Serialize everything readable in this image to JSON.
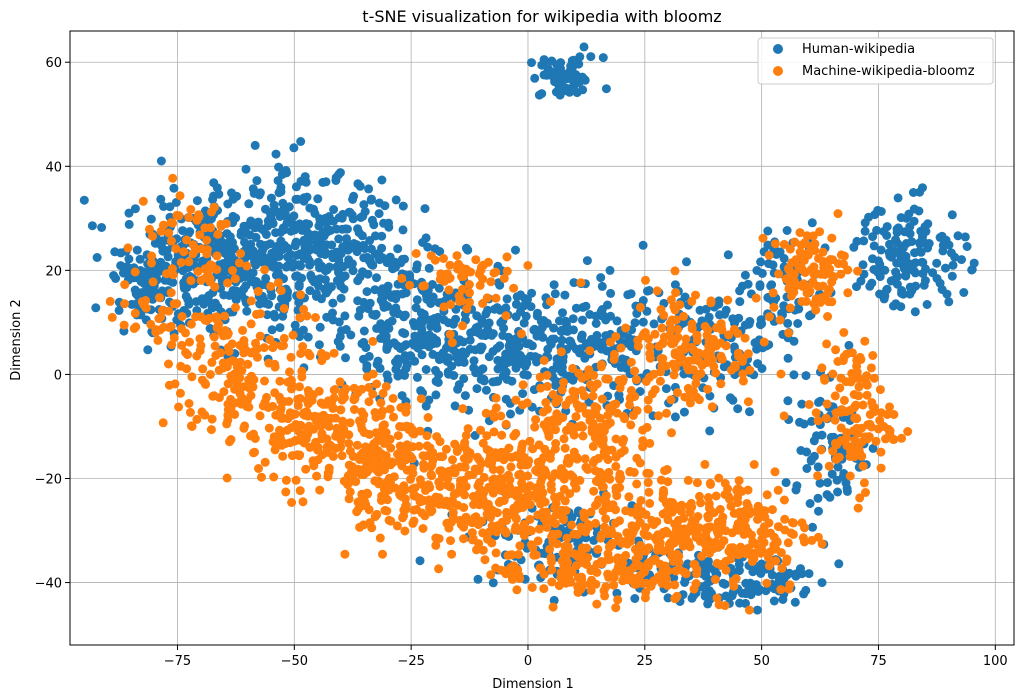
{
  "chart_data": {
    "type": "scatter",
    "title": "t-SNE visualization for wikipedia with bloomz",
    "xlabel": "Dimension 1",
    "ylabel": "Dimension 2",
    "xlim": [
      -98,
      104
    ],
    "ylim": [
      -52,
      66
    ],
    "x_ticks": [
      -75,
      -50,
      -25,
      0,
      25,
      50,
      75,
      100
    ],
    "x_tick_labels": [
      "−75",
      "−50",
      "−25",
      "0",
      "25",
      "50",
      "75",
      "100"
    ],
    "y_ticks": [
      -40,
      -20,
      0,
      20,
      40,
      60
    ],
    "y_tick_labels": [
      "−40",
      "−20",
      "0",
      "20",
      "40",
      "60"
    ],
    "grid": true,
    "legend_position": "top-right",
    "series": [
      {
        "name": "Human-wikipedia",
        "color": "#1f77b4",
        "clusters": [
          {
            "cx": 8,
            "cy": 57,
            "sx": 4,
            "sy": 2,
            "n": 60
          },
          {
            "cx": -65,
            "cy": 22,
            "sx": 11,
            "sy": 7,
            "n": 380
          },
          {
            "cx": -45,
            "cy": 24,
            "sx": 9,
            "sy": 7,
            "n": 260
          },
          {
            "cx": -80,
            "cy": 18,
            "sx": 4,
            "sy": 4,
            "n": 80
          },
          {
            "cx": -25,
            "cy": 10,
            "sx": 9,
            "sy": 8,
            "n": 220
          },
          {
            "cx": -5,
            "cy": 5,
            "sx": 8,
            "sy": 6,
            "n": 200
          },
          {
            "cx": 15,
            "cy": 5,
            "sx": 8,
            "sy": 6,
            "n": 150
          },
          {
            "cx": 40,
            "cy": 5,
            "sx": 8,
            "sy": 7,
            "n": 120
          },
          {
            "cx": 82,
            "cy": 23,
            "sx": 6,
            "sy": 5,
            "n": 150
          },
          {
            "cx": 55,
            "cy": 17,
            "sx": 4,
            "sy": 5,
            "n": 70
          },
          {
            "cx": 65,
            "cy": -15,
            "sx": 5,
            "sy": 6,
            "n": 80
          },
          {
            "cx": 5,
            "cy": -32,
            "sx": 9,
            "sy": 4,
            "n": 100
          },
          {
            "cx": 35,
            "cy": -38,
            "sx": 9,
            "sy": 3,
            "n": 100
          },
          {
            "cx": 50,
            "cy": -40,
            "sx": 5,
            "sy": 3,
            "n": 60
          }
        ]
      },
      {
        "name": "Machine-wikipedia-bloomz",
        "color": "#ff7f0e",
        "clusters": [
          {
            "cx": -62,
            "cy": 2,
            "sx": 7,
            "sy": 8,
            "n": 180
          },
          {
            "cx": -45,
            "cy": -10,
            "sx": 8,
            "sy": 6,
            "n": 200
          },
          {
            "cx": -30,
            "cy": -18,
            "sx": 7,
            "sy": 6,
            "n": 180
          },
          {
            "cx": -12,
            "cy": -22,
            "sx": 8,
            "sy": 6,
            "n": 220
          },
          {
            "cx": 5,
            "cy": -20,
            "sx": 8,
            "sy": 8,
            "n": 200
          },
          {
            "cx": 15,
            "cy": -10,
            "sx": 7,
            "sy": 8,
            "n": 150
          },
          {
            "cx": 25,
            "cy": -33,
            "sx": 7,
            "sy": 6,
            "n": 180
          },
          {
            "cx": 45,
            "cy": -30,
            "sx": 8,
            "sy": 6,
            "n": 180
          },
          {
            "cx": 35,
            "cy": 5,
            "sx": 7,
            "sy": 6,
            "n": 150
          },
          {
            "cx": 60,
            "cy": 20,
            "sx": 4,
            "sy": 4,
            "n": 100
          },
          {
            "cx": 70,
            "cy": -8,
            "sx": 4,
            "sy": 7,
            "n": 120
          },
          {
            "cx": -15,
            "cy": 18,
            "sx": 6,
            "sy": 4,
            "n": 60
          },
          {
            "cx": -72,
            "cy": 25,
            "sx": 6,
            "sy": 6,
            "n": 60
          },
          {
            "cx": -82,
            "cy": 12,
            "sx": 4,
            "sy": 3,
            "n": 30
          },
          {
            "cx": 10,
            "cy": -38,
            "sx": 9,
            "sy": 3,
            "n": 100
          }
        ]
      }
    ]
  }
}
